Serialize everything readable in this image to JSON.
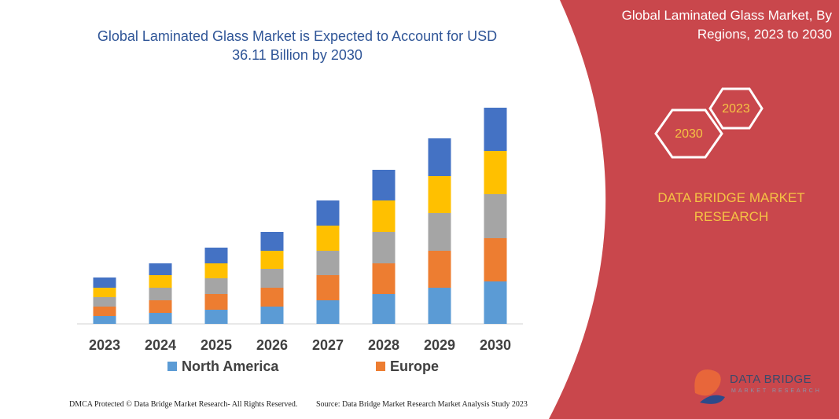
{
  "chart_data": {
    "type": "bar",
    "stacked": true,
    "title": "Global Laminated Glass Market is Expected to Account for USD 36.11 Billion by 2030",
    "categories": [
      "2023",
      "2024",
      "2025",
      "2026",
      "2027",
      "2028",
      "2029",
      "2030"
    ],
    "series": [
      {
        "name": "North America",
        "color": "#5b9bd5",
        "values": [
          10,
          14,
          18,
          22,
          30,
          38,
          46,
          54
        ]
      },
      {
        "name": "Europe",
        "color": "#ed7d31",
        "values": [
          12,
          16,
          20,
          24,
          32,
          39,
          47,
          55
        ]
      },
      {
        "color": "#a5a5a5",
        "values": [
          12,
          16,
          20,
          24,
          31,
          40,
          48,
          56
        ]
      },
      {
        "color": "#ffc000",
        "values": [
          12,
          16,
          19,
          23,
          32,
          40,
          47,
          55
        ]
      },
      {
        "color": "#4472c4",
        "values": [
          13,
          15,
          20,
          24,
          32,
          39,
          48,
          55
        ]
      }
    ]
  },
  "sidebar": {
    "title": "Global Laminated Glass Market, By Regions, 2023 to 2030",
    "hexagons": [
      "2030",
      "2023"
    ],
    "brand": "DATA BRIDGE MARKET RESEARCH"
  },
  "footer": {
    "dmca": "DMCA Protected © Data Bridge Market Research- All Rights Reserved.",
    "source": "Source: Data Bridge Market Research  Market Analysis Study 2023"
  },
  "logo": {
    "name": "DATA BRIDGE",
    "tagline": "MARKET RESEARCH"
  }
}
